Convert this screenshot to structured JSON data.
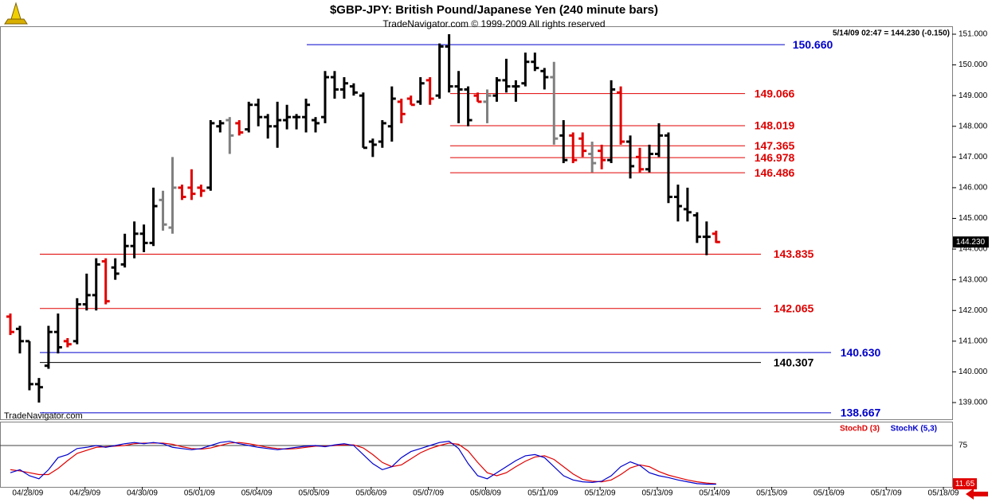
{
  "chart_data": {
    "type": "ohlc",
    "title": "$GBP-JPY:  British Pound/Japanese Yen  (240 minute bars)",
    "subtitle": "TradeNavigator.com © 1999-2009 All rights reserved",
    "watermark": "TradeNavigator.com",
    "info": "5/14/09 02:47 = 144.230 (-0.150)",
    "last_label": "144.230",
    "categories": [
      "04/28/09",
      "04/29/09",
      "04/30/09",
      "05/01/09",
      "05/04/09",
      "05/05/09",
      "05/06/09",
      "05/07/09",
      "05/08/09",
      "05/11/09",
      "05/12/09",
      "05/13/09",
      "05/14/09",
      "05/15/09",
      "05/16/09",
      "05/17/09",
      "05/18/09"
    ],
    "ylim": [
      151.0,
      139.0
    ],
    "yticks": [
      {
        "value": 151,
        "label": "151.000"
      },
      {
        "value": 150,
        "label": "150.000"
      },
      {
        "value": 149,
        "label": "149.000"
      },
      {
        "value": 148,
        "label": "148.000"
      },
      {
        "value": 147,
        "label": "147.000"
      },
      {
        "value": 146,
        "label": "146.000"
      },
      {
        "value": 145,
        "label": "145.000"
      },
      {
        "value": 144,
        "label": "144.000"
      },
      {
        "value": 143,
        "label": "143.000"
      },
      {
        "value": 142,
        "label": "142.000"
      },
      {
        "value": 141,
        "label": "141.000"
      },
      {
        "value": 140,
        "label": "140.000"
      },
      {
        "value": 139,
        "label": "139.000"
      }
    ],
    "bar_colors": {
      "k": "#000000",
      "r": "#e00000",
      "g": "#808080"
    },
    "bars": {
      "color": [
        "r",
        "k",
        "k",
        "k",
        "k",
        "k",
        "r",
        "k",
        "k",
        "k",
        "r",
        "k",
        "k",
        "k",
        "k",
        "k",
        "g",
        "g",
        "r",
        "r",
        "r",
        "k",
        "k",
        "g",
        "r",
        "k",
        "k",
        "k",
        "k",
        "k",
        "k",
        "k",
        "k",
        "k",
        "k",
        "k",
        "k",
        "k",
        "k",
        "k",
        "k",
        "r",
        "r",
        "k",
        "r",
        "k",
        "k",
        "k",
        "k",
        "r",
        "g",
        "k",
        "k",
        "k",
        "k",
        "k",
        "k",
        "g",
        "k",
        "r",
        "r",
        "g",
        "r",
        "k",
        "r",
        "k",
        "r",
        "k",
        "k",
        "k",
        "k",
        "k",
        "k",
        "k",
        "r"
      ],
      "open": [
        141.8,
        141.4,
        141.0,
        139.6,
        140.2,
        141.3,
        141.0,
        141.0,
        142.2,
        142.5,
        143.6,
        143.4,
        143.5,
        144.1,
        144.5,
        144.2,
        145.6,
        144.7,
        146.0,
        146.0,
        146.0,
        146.0,
        148.0,
        148.2,
        148.1,
        147.9,
        148.7,
        148.3,
        148.0,
        148.2,
        148.3,
        148.3,
        148.2,
        148.3,
        149.6,
        149.2,
        149.3,
        149.0,
        147.5,
        147.5,
        148.0,
        148.8,
        148.9,
        148.8,
        149.5,
        149.0,
        150.6,
        149.3,
        149.2,
        149.0,
        148.8,
        149.0,
        149.5,
        149.3,
        149.4,
        150.1,
        149.8,
        149.6,
        147.7,
        147.7,
        147.6,
        147.1,
        147.2,
        146.9,
        149.1,
        147.5,
        147.0,
        146.6,
        147.1,
        147.7,
        145.7,
        145.3,
        145.1,
        144.4,
        144.5
      ],
      "high": [
        141.9,
        141.5,
        141.0,
        139.8,
        141.5,
        141.9,
        141.1,
        142.4,
        143.2,
        143.7,
        143.7,
        143.7,
        144.5,
        144.9,
        144.8,
        146.0,
        145.9,
        147.0,
        146.1,
        146.6,
        146.1,
        148.2,
        148.2,
        148.3,
        148.2,
        148.8,
        148.9,
        148.4,
        148.8,
        148.7,
        148.4,
        148.9,
        148.3,
        149.8,
        149.8,
        149.6,
        149.4,
        149.1,
        147.6,
        148.2,
        149.3,
        148.9,
        149.0,
        149.6,
        149.6,
        150.7,
        151.0,
        149.8,
        149.3,
        149.1,
        149.2,
        149.6,
        150.2,
        149.5,
        150.4,
        150.4,
        149.9,
        150.1,
        148.2,
        147.8,
        147.8,
        147.5,
        147.4,
        149.5,
        149.3,
        147.7,
        147.3,
        147.4,
        148.1,
        147.8,
        146.1,
        146.0,
        145.2,
        144.9,
        144.6
      ],
      "low": [
        141.2,
        140.6,
        139.4,
        139.0,
        140.1,
        140.6,
        140.8,
        140.9,
        142.0,
        142.0,
        142.2,
        143.0,
        143.4,
        143.7,
        143.9,
        144.1,
        144.6,
        144.5,
        145.6,
        145.6,
        145.7,
        145.9,
        147.8,
        147.1,
        147.7,
        147.8,
        148.0,
        147.6,
        147.3,
        147.9,
        147.9,
        147.8,
        147.8,
        148.1,
        148.9,
        148.9,
        149.0,
        147.3,
        147.0,
        147.3,
        147.5,
        148.1,
        148.7,
        148.7,
        148.7,
        148.9,
        149.1,
        148.1,
        148.0,
        148.8,
        148.1,
        148.8,
        149.1,
        148.8,
        149.3,
        149.8,
        149.2,
        147.4,
        146.8,
        146.8,
        147.0,
        146.5,
        146.6,
        146.8,
        147.4,
        146.3,
        146.5,
        146.5,
        147.0,
        145.5,
        144.9,
        144.9,
        144.2,
        143.8,
        144.2
      ],
      "close": [
        141.3,
        141.0,
        139.6,
        139.5,
        141.3,
        140.8,
        140.9,
        142.2,
        142.5,
        143.5,
        142.3,
        143.2,
        144.1,
        144.5,
        144.2,
        145.4,
        144.8,
        146.0,
        145.7,
        145.8,
        145.9,
        148.1,
        148.1,
        147.7,
        147.8,
        148.7,
        148.3,
        148.0,
        148.2,
        148.3,
        148.3,
        148.7,
        148.1,
        149.6,
        149.2,
        149.4,
        149.1,
        147.3,
        147.4,
        148.1,
        148.9,
        148.4,
        148.7,
        149.4,
        148.9,
        150.6,
        149.3,
        149.2,
        148.2,
        148.8,
        149.0,
        149.5,
        149.3,
        149.3,
        150.1,
        149.9,
        149.6,
        147.6,
        146.9,
        146.9,
        147.2,
        146.8,
        146.9,
        149.2,
        147.5,
        146.7,
        146.6,
        147.1,
        147.7,
        145.7,
        145.4,
        145.2,
        144.4,
        144.4,
        144.23
      ]
    },
    "levels": [
      {
        "value": 150.66,
        "label": "150.660",
        "color": "#0000cc"
      },
      {
        "value": 149.066,
        "label": "149.066",
        "color": "#e00000"
      },
      {
        "value": 148.019,
        "label": "148.019",
        "color": "#e00000"
      },
      {
        "value": 147.365,
        "label": "147.365",
        "color": "#e00000"
      },
      {
        "value": 146.978,
        "label": "146.978",
        "color": "#e00000"
      },
      {
        "value": 146.486,
        "label": "146.486",
        "color": "#e00000"
      },
      {
        "value": 143.835,
        "label": "143.835",
        "color": "#e00000"
      },
      {
        "value": 142.065,
        "label": "142.065",
        "color": "#e00000"
      },
      {
        "value": 140.63,
        "label": "140.630",
        "color": "#0000cc"
      },
      {
        "value": 140.307,
        "label": "140.307",
        "color": "#000000"
      },
      {
        "value": 138.667,
        "label": "138.667",
        "color": "#0000cc"
      }
    ],
    "stochastic": {
      "ylim": [
        0,
        100
      ],
      "yticks": [
        75
      ],
      "series": [
        {
          "name": "StochD (3)",
          "color": "#e00000",
          "values": [
            35,
            33,
            30,
            27,
            27,
            37,
            50,
            62,
            67,
            72,
            73,
            74,
            75,
            78,
            79,
            79,
            79,
            77,
            73,
            70,
            69,
            71,
            75,
            79,
            80,
            78,
            75,
            72,
            70,
            69,
            70,
            72,
            74,
            74,
            75,
            76,
            76,
            71,
            60,
            47,
            40,
            43,
            53,
            63,
            70,
            75,
            79,
            77,
            66,
            47,
            30,
            25,
            30,
            40,
            49,
            56,
            58,
            52,
            40,
            28,
            19,
            16,
            15,
            18,
            27,
            38,
            43,
            40,
            32,
            26,
            22,
            18,
            15,
            13,
            11.65
          ]
        },
        {
          "name": "StochK (5,3)",
          "color": "#0000cc",
          "values": [
            30,
            35,
            25,
            20,
            35,
            55,
            60,
            70,
            72,
            75,
            72,
            75,
            78,
            80,
            78,
            80,
            78,
            72,
            70,
            68,
            70,
            75,
            80,
            82,
            78,
            75,
            72,
            70,
            68,
            70,
            72,
            74,
            75,
            73,
            76,
            78,
            75,
            60,
            45,
            35,
            40,
            55,
            65,
            70,
            75,
            80,
            82,
            70,
            45,
            25,
            20,
            30,
            40,
            50,
            58,
            60,
            55,
            40,
            25,
            18,
            15,
            14,
            16,
            25,
            40,
            48,
            42,
            30,
            25,
            22,
            18,
            15,
            12,
            11,
            11
          ]
        }
      ]
    }
  }
}
